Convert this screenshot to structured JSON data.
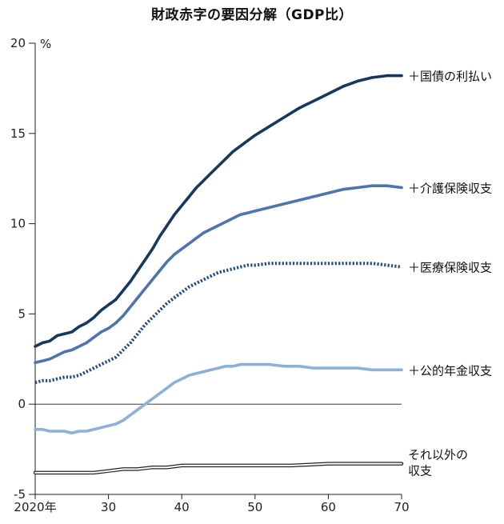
{
  "chart_data": {
    "type": "line",
    "title": "財政赤字の要因分解（GDP比）",
    "ylabel": "%",
    "xlabel": "",
    "xlim": [
      2020,
      2070
    ],
    "ylim": [
      -5,
      20
    ],
    "x_ticks": [
      {
        "value": 2020,
        "label": "2020年"
      },
      {
        "value": 2030,
        "label": "30"
      },
      {
        "value": 2040,
        "label": "40"
      },
      {
        "value": 2050,
        "label": "50"
      },
      {
        "value": 2060,
        "label": "60"
      },
      {
        "value": 2070,
        "label": "70"
      }
    ],
    "y_ticks": [
      {
        "value": 20,
        "label": "20"
      },
      {
        "value": 15,
        "label": "15"
      },
      {
        "value": 10,
        "label": "10"
      },
      {
        "value": 5,
        "label": "5"
      },
      {
        "value": 0,
        "label": "0"
      },
      {
        "value": -5,
        "label": "-5"
      }
    ],
    "grid": false,
    "zero_line": true,
    "series": [
      {
        "name": "＋国債の利払い",
        "color": "#17375e",
        "style": "solid",
        "points": [
          [
            2020,
            3.2
          ],
          [
            2021,
            3.4
          ],
          [
            2022,
            3.5
          ],
          [
            2023,
            3.8
          ],
          [
            2024,
            3.9
          ],
          [
            2025,
            4.0
          ],
          [
            2026,
            4.3
          ],
          [
            2027,
            4.5
          ],
          [
            2028,
            4.8
          ],
          [
            2029,
            5.2
          ],
          [
            2030,
            5.5
          ],
          [
            2031,
            5.8
          ],
          [
            2032,
            6.3
          ],
          [
            2033,
            6.8
          ],
          [
            2034,
            7.4
          ],
          [
            2035,
            8.0
          ],
          [
            2036,
            8.6
          ],
          [
            2037,
            9.3
          ],
          [
            2038,
            9.9
          ],
          [
            2039,
            10.5
          ],
          [
            2040,
            11.0
          ],
          [
            2041,
            11.5
          ],
          [
            2042,
            12.0
          ],
          [
            2043,
            12.4
          ],
          [
            2044,
            12.8
          ],
          [
            2045,
            13.2
          ],
          [
            2046,
            13.6
          ],
          [
            2047,
            14.0
          ],
          [
            2048,
            14.3
          ],
          [
            2049,
            14.6
          ],
          [
            2050,
            14.9
          ],
          [
            2052,
            15.4
          ],
          [
            2054,
            15.9
          ],
          [
            2056,
            16.4
          ],
          [
            2058,
            16.8
          ],
          [
            2060,
            17.2
          ],
          [
            2062,
            17.6
          ],
          [
            2064,
            17.9
          ],
          [
            2066,
            18.1
          ],
          [
            2068,
            18.2
          ],
          [
            2070,
            18.2
          ]
        ]
      },
      {
        "name": "＋介護保険収支",
        "color": "#4e74ad",
        "style": "solid",
        "points": [
          [
            2020,
            2.3
          ],
          [
            2021,
            2.4
          ],
          [
            2022,
            2.5
          ],
          [
            2023,
            2.7
          ],
          [
            2024,
            2.9
          ],
          [
            2025,
            3.0
          ],
          [
            2026,
            3.2
          ],
          [
            2027,
            3.4
          ],
          [
            2028,
            3.7
          ],
          [
            2029,
            4.0
          ],
          [
            2030,
            4.2
          ],
          [
            2031,
            4.5
          ],
          [
            2032,
            4.9
          ],
          [
            2033,
            5.4
          ],
          [
            2034,
            5.9
          ],
          [
            2035,
            6.4
          ],
          [
            2036,
            6.9
          ],
          [
            2037,
            7.4
          ],
          [
            2038,
            7.9
          ],
          [
            2039,
            8.3
          ],
          [
            2040,
            8.6
          ],
          [
            2041,
            8.9
          ],
          [
            2042,
            9.2
          ],
          [
            2043,
            9.5
          ],
          [
            2044,
            9.7
          ],
          [
            2045,
            9.9
          ],
          [
            2046,
            10.1
          ],
          [
            2047,
            10.3
          ],
          [
            2048,
            10.5
          ],
          [
            2049,
            10.6
          ],
          [
            2050,
            10.7
          ],
          [
            2052,
            10.9
          ],
          [
            2054,
            11.1
          ],
          [
            2056,
            11.3
          ],
          [
            2058,
            11.5
          ],
          [
            2060,
            11.7
          ],
          [
            2062,
            11.9
          ],
          [
            2064,
            12.0
          ],
          [
            2066,
            12.1
          ],
          [
            2068,
            12.1
          ],
          [
            2070,
            12.0
          ]
        ]
      },
      {
        "name": "＋医療保険収支",
        "color": "#1f4a85",
        "style": "dotted",
        "points": [
          [
            2020,
            1.2
          ],
          [
            2021,
            1.3
          ],
          [
            2022,
            1.3
          ],
          [
            2023,
            1.4
          ],
          [
            2024,
            1.5
          ],
          [
            2025,
            1.5
          ],
          [
            2026,
            1.6
          ],
          [
            2027,
            1.8
          ],
          [
            2028,
            2.0
          ],
          [
            2029,
            2.2
          ],
          [
            2030,
            2.4
          ],
          [
            2031,
            2.6
          ],
          [
            2032,
            3.0
          ],
          [
            2033,
            3.4
          ],
          [
            2034,
            3.9
          ],
          [
            2035,
            4.4
          ],
          [
            2036,
            4.8
          ],
          [
            2037,
            5.2
          ],
          [
            2038,
            5.6
          ],
          [
            2039,
            5.9
          ],
          [
            2040,
            6.2
          ],
          [
            2041,
            6.5
          ],
          [
            2042,
            6.7
          ],
          [
            2043,
            6.9
          ],
          [
            2044,
            7.1
          ],
          [
            2045,
            7.3
          ],
          [
            2046,
            7.4
          ],
          [
            2047,
            7.5
          ],
          [
            2048,
            7.6
          ],
          [
            2049,
            7.7
          ],
          [
            2050,
            7.7
          ],
          [
            2052,
            7.8
          ],
          [
            2054,
            7.8
          ],
          [
            2056,
            7.8
          ],
          [
            2058,
            7.8
          ],
          [
            2060,
            7.8
          ],
          [
            2062,
            7.8
          ],
          [
            2064,
            7.8
          ],
          [
            2066,
            7.8
          ],
          [
            2068,
            7.7
          ],
          [
            2070,
            7.6
          ]
        ]
      },
      {
        "name": "＋公的年金収支",
        "color": "#8cb0d8",
        "style": "solid",
        "points": [
          [
            2020,
            -1.4
          ],
          [
            2021,
            -1.4
          ],
          [
            2022,
            -1.5
          ],
          [
            2023,
            -1.5
          ],
          [
            2024,
            -1.5
          ],
          [
            2025,
            -1.6
          ],
          [
            2026,
            -1.5
          ],
          [
            2027,
            -1.5
          ],
          [
            2028,
            -1.4
          ],
          [
            2029,
            -1.3
          ],
          [
            2030,
            -1.2
          ],
          [
            2031,
            -1.1
          ],
          [
            2032,
            -0.9
          ],
          [
            2033,
            -0.6
          ],
          [
            2034,
            -0.3
          ],
          [
            2035,
            0.0
          ],
          [
            2036,
            0.3
          ],
          [
            2037,
            0.6
          ],
          [
            2038,
            0.9
          ],
          [
            2039,
            1.2
          ],
          [
            2040,
            1.4
          ],
          [
            2041,
            1.6
          ],
          [
            2042,
            1.7
          ],
          [
            2043,
            1.8
          ],
          [
            2044,
            1.9
          ],
          [
            2045,
            2.0
          ],
          [
            2046,
            2.1
          ],
          [
            2047,
            2.1
          ],
          [
            2048,
            2.2
          ],
          [
            2049,
            2.2
          ],
          [
            2050,
            2.2
          ],
          [
            2052,
            2.2
          ],
          [
            2054,
            2.1
          ],
          [
            2056,
            2.1
          ],
          [
            2058,
            2.0
          ],
          [
            2060,
            2.0
          ],
          [
            2062,
            2.0
          ],
          [
            2064,
            2.0
          ],
          [
            2066,
            1.9
          ],
          [
            2068,
            1.9
          ],
          [
            2070,
            1.9
          ]
        ]
      },
      {
        "name": "それ以外の\n収支",
        "color": "#222222",
        "style": "double",
        "points": [
          [
            2020,
            -3.8
          ],
          [
            2022,
            -3.8
          ],
          [
            2024,
            -3.8
          ],
          [
            2026,
            -3.8
          ],
          [
            2028,
            -3.8
          ],
          [
            2030,
            -3.7
          ],
          [
            2032,
            -3.6
          ],
          [
            2034,
            -3.6
          ],
          [
            2036,
            -3.5
          ],
          [
            2038,
            -3.5
          ],
          [
            2040,
            -3.4
          ],
          [
            2042,
            -3.4
          ],
          [
            2044,
            -3.4
          ],
          [
            2046,
            -3.4
          ],
          [
            2048,
            -3.4
          ],
          [
            2050,
            -3.4
          ],
          [
            2055,
            -3.4
          ],
          [
            2060,
            -3.3
          ],
          [
            2065,
            -3.3
          ],
          [
            2070,
            -3.3
          ]
        ]
      }
    ]
  }
}
